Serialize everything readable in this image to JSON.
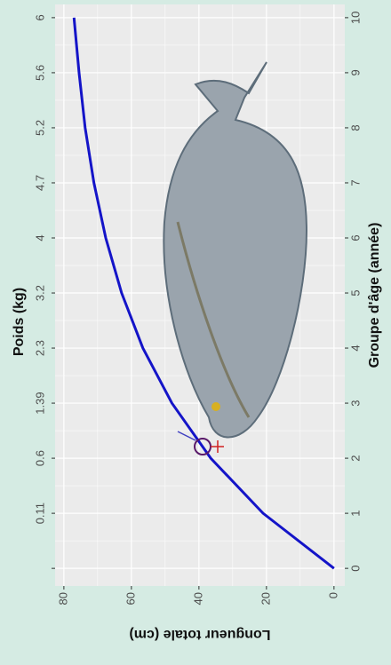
{
  "chart_data": {
    "type": "line",
    "xlabel": "Groupe d'âge (année)",
    "ylabel": "Longueur totale (cm)",
    "x2label": "Poids (kg)",
    "x": [
      0,
      1,
      2,
      3,
      4,
      5,
      6,
      7,
      8,
      9,
      10
    ],
    "series": [
      {
        "color": "#1414c8",
        "values": [
          0,
          21,
          36.5,
          48,
          56.6,
          62.9,
          67.6,
          71.1,
          73.7,
          75.5,
          77
        ]
      }
    ],
    "xlim": [
      -0.32,
      10.24
    ],
    "ylim": [
      -3.2,
      82.6
    ],
    "xticks": [
      0,
      1,
      2,
      3,
      4,
      5,
      6,
      7,
      8,
      9,
      10
    ],
    "yticks": [
      0,
      20,
      40,
      60,
      80
    ],
    "x2ticks": [
      {
        "value": 0,
        "label": null
      },
      {
        "value": 1,
        "label": "0.11"
      },
      {
        "value": 2,
        "label": "0.6"
      },
      {
        "value": 3,
        "label": "1.39"
      },
      {
        "value": 4,
        "label": "2.3"
      },
      {
        "value": 5,
        "label": "3.2"
      },
      {
        "value": 6,
        "label": "4"
      },
      {
        "value": 7,
        "label": "4.7"
      },
      {
        "value": 8,
        "label": "5.2"
      },
      {
        "value": 9,
        "label": "5.6"
      },
      {
        "value": 10,
        "label": "6"
      }
    ],
    "grid": true
  }
}
